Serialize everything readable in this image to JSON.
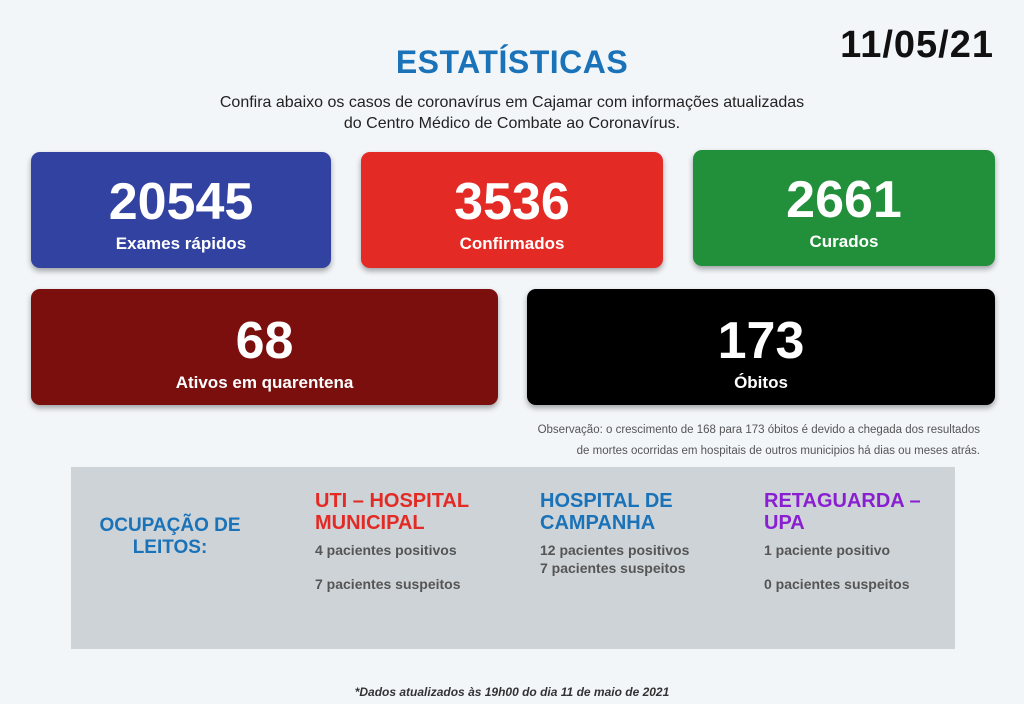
{
  "date": "11/05/21",
  "title": "ESTATÍSTICAS",
  "subtitle_line1": "Confira abaixo os casos de coronavírus em Cajamar com informações atualizadas",
  "subtitle_line2": "do Centro Médico de Combate ao Coronavírus.",
  "cards": [
    {
      "value": "20545",
      "label": "Exames rápidos",
      "color": "#3242a1"
    },
    {
      "value": "3536",
      "label": "Confirmados",
      "color": "#e32a24"
    },
    {
      "value": "2661",
      "label": "Curados",
      "color": "#22903a"
    },
    {
      "value": "68",
      "label": "Ativos em quarentena",
      "color": "#7b0f0e"
    },
    {
      "value": "173",
      "label": "Óbitos",
      "color": "#000000"
    }
  ],
  "observation_line1": "Observação: o crescimento de 168 para 173 óbitos é devido a chegada dos resultados",
  "observation_line2": "de mortes ocorridas em hospitais de outros municipios há dias ou meses atrás.",
  "occupancy": {
    "heading_line1": "OCUPAÇÃO DE",
    "heading_line2": "LEITOS:",
    "columns": [
      {
        "head_line1": "UTI – HOSPITAL",
        "head_line2": "MUNICIPAL",
        "positive": "4 pacientes positivos",
        "suspect": "7 pacientes suspeitos",
        "color": "#e32a24"
      },
      {
        "head_line1": "HOSPITAL DE",
        "head_line2": "CAMPANHA",
        "positive": "12 pacientes positivos",
        "suspect": "7 pacientes suspeitos",
        "color": "#1a72b8"
      },
      {
        "head_line1": "RETAGUARDA –",
        "head_line2": "UPA",
        "positive": "1 paciente positivo",
        "suspect": "0 pacientes suspeitos",
        "color": "#8a1fd1"
      }
    ]
  },
  "footer": "*Dados atualizados às 19h00 do dia 11 de maio de 2021"
}
